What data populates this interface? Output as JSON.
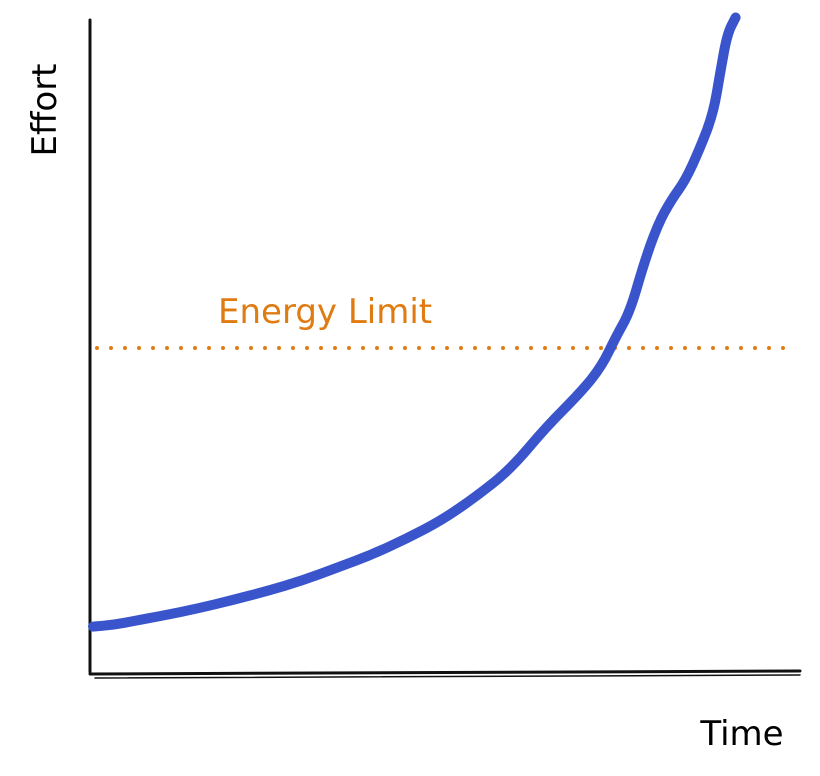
{
  "chart_data": {
    "type": "line",
    "xlabel": "Time",
    "ylabel": "Effort",
    "xlim": [
      0,
      100
    ],
    "ylim": [
      0,
      100
    ],
    "grid": false,
    "series": [
      {
        "color": "#3a55cc",
        "points": [
          [
            0,
            7
          ],
          [
            3,
            7.3
          ],
          [
            6,
            7.9
          ],
          [
            10,
            8.7
          ],
          [
            15,
            9.8
          ],
          [
            20,
            11.1
          ],
          [
            25,
            12.5
          ],
          [
            30,
            14.1
          ],
          [
            35,
            16.1
          ],
          [
            40,
            18.1
          ],
          [
            45,
            20.6
          ],
          [
            50,
            23.4
          ],
          [
            55,
            27.1
          ],
          [
            60,
            31.4
          ],
          [
            65,
            37.8
          ],
          [
            70,
            43.2
          ],
          [
            73,
            47.2
          ],
          [
            75,
            51.7
          ],
          [
            77,
            55.5
          ],
          [
            79,
            62.9
          ],
          [
            81,
            69.0
          ],
          [
            83,
            72.9
          ],
          [
            85,
            75.9
          ],
          [
            87,
            80.6
          ],
          [
            89,
            86.2
          ],
          [
            90,
            92.6
          ],
          [
            91,
            98.5
          ],
          [
            92.2,
            101
          ]
        ]
      }
    ],
    "reference_lines": [
      {
        "label": "Energy Limit",
        "y": 50,
        "color": "#e07b12",
        "style": "dotted"
      }
    ]
  }
}
